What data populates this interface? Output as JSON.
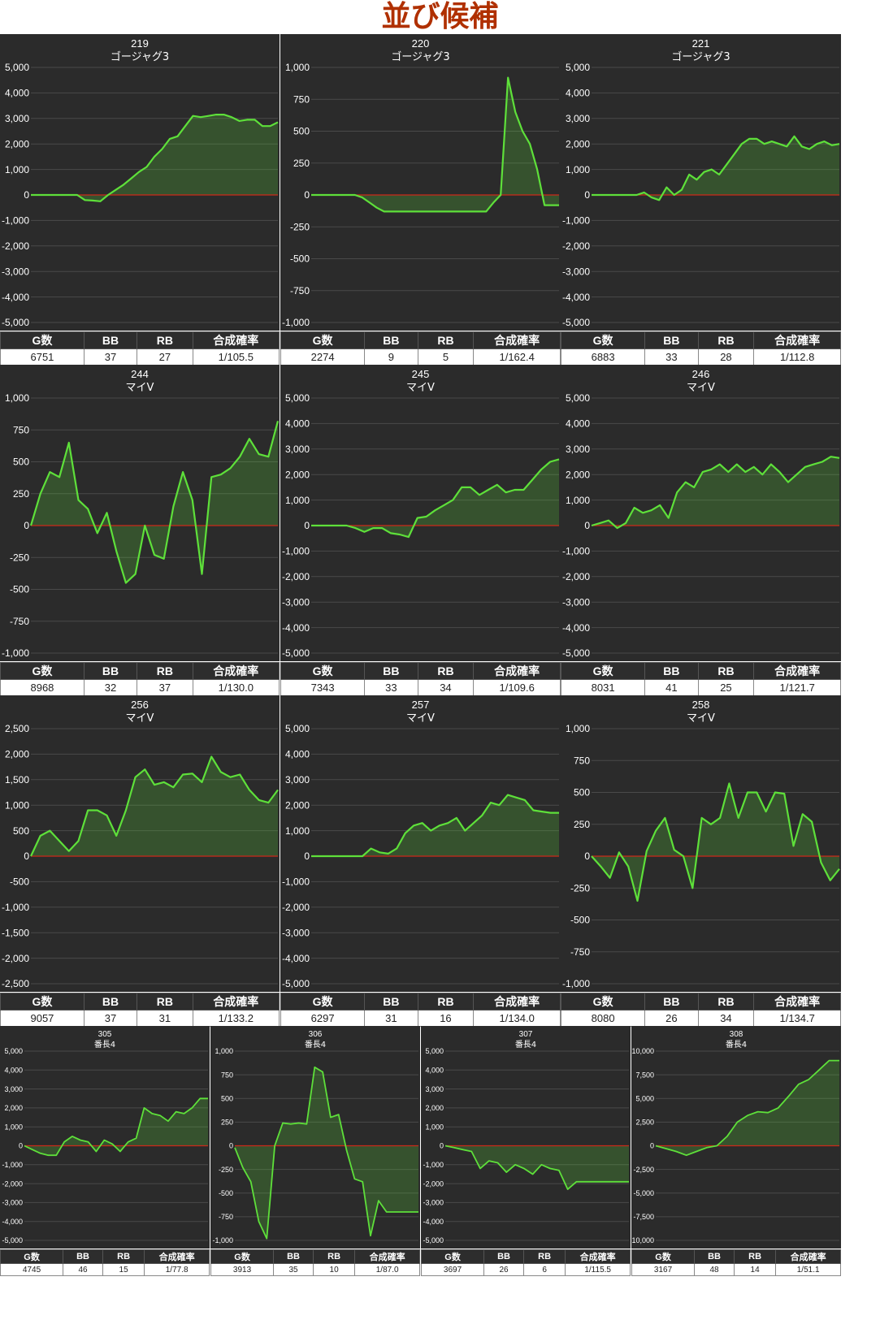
{
  "page": {
    "title": "並び候補"
  },
  "colors": {
    "background": "#2b2b2b",
    "grid": "#4a4a4a",
    "line": "#5ee03a",
    "fill": "rgba(94,224,58,0.22)",
    "zero_line": "#cc2a1a",
    "axis_text": "#ffffff",
    "title_text": "#ffffff"
  },
  "stats_headers": [
    "G数",
    "BB",
    "RB",
    "合成確率"
  ],
  "chart_data": [
    {
      "type": "area",
      "machine_no": "219",
      "model": "ゴージャグ3",
      "ylim": [
        -5000,
        5000
      ],
      "yticks": [
        "5,000",
        "4,000",
        "3,000",
        "2,000",
        "1,000",
        "0",
        "-1,000",
        "-2,000",
        "-3,000",
        "-4,000",
        "-5,000"
      ],
      "values": [
        0,
        0,
        0,
        0,
        0,
        0,
        0,
        -200,
        -220,
        -250,
        0,
        200,
        400,
        650,
        900,
        1100,
        1500,
        1800,
        2200,
        2300,
        2700,
        3100,
        3050,
        3100,
        3150,
        3150,
        3050,
        2900,
        2950,
        2950,
        2700,
        2700,
        2850
      ],
      "stats": {
        "games": "6751",
        "bb": "37",
        "rb": "27",
        "rate": "1/105.5"
      }
    },
    {
      "type": "area",
      "machine_no": "220",
      "model": "ゴージャグ3",
      "ylim": [
        -1000,
        1000
      ],
      "yticks": [
        "1,000",
        "750",
        "500",
        "250",
        "0",
        "-250",
        "-500",
        "-750",
        "-1,000"
      ],
      "values": [
        0,
        0,
        0,
        0,
        0,
        0,
        0,
        -20,
        -60,
        -100,
        -130,
        -130,
        -130,
        -130,
        -130,
        -130,
        -130,
        -130,
        -130,
        -130,
        -130,
        -130,
        -130,
        -130,
        -130,
        -60,
        0,
        920,
        650,
        500,
        400,
        200,
        -80,
        -80,
        -80
      ],
      "stats": {
        "games": "2274",
        "bb": "9",
        "rb": "5",
        "rate": "1/162.4"
      }
    },
    {
      "type": "area",
      "machine_no": "221",
      "model": "ゴージャグ3",
      "ylim": [
        -5000,
        5000
      ],
      "yticks": [
        "5,000",
        "4,000",
        "3,000",
        "2,000",
        "1,000",
        "0",
        "-1,000",
        "-2,000",
        "-3,000",
        "-4,000",
        "-5,000"
      ],
      "values": [
        0,
        0,
        0,
        0,
        0,
        0,
        0,
        100,
        -100,
        -200,
        300,
        0,
        200,
        800,
        600,
        900,
        1000,
        800,
        1200,
        1600,
        2000,
        2200,
        2200,
        2000,
        2100,
        2000,
        1900,
        2300,
        1900,
        1800,
        2000,
        2100,
        1950,
        2000
      ],
      "stats": {
        "games": "6883",
        "bb": "33",
        "rb": "28",
        "rate": "1/112.8"
      }
    },
    {
      "type": "area",
      "machine_no": "244",
      "model": "マイV",
      "ylim": [
        -1000,
        1000
      ],
      "yticks": [
        "1,000",
        "750",
        "500",
        "250",
        "0",
        "-250",
        "-500",
        "-750",
        "-1,000"
      ],
      "values": [
        0,
        250,
        420,
        380,
        650,
        200,
        130,
        -60,
        100,
        -200,
        -450,
        -380,
        0,
        -230,
        -260,
        150,
        420,
        200,
        -380,
        380,
        400,
        450,
        540,
        680,
        560,
        540,
        820
      ],
      "stats": {
        "games": "8968",
        "bb": "32",
        "rb": "37",
        "rate": "1/130.0"
      }
    },
    {
      "type": "area",
      "machine_no": "245",
      "model": "マイV",
      "ylim": [
        -5000,
        5000
      ],
      "yticks": [
        "5,000",
        "4,000",
        "3,000",
        "2,000",
        "1,000",
        "0",
        "-1,000",
        "-2,000",
        "-3,000",
        "-4,000",
        "-5,000"
      ],
      "values": [
        0,
        0,
        0,
        0,
        0,
        -100,
        -250,
        -100,
        -100,
        -300,
        -350,
        -450,
        300,
        350,
        600,
        800,
        1000,
        1500,
        1500,
        1200,
        1400,
        1600,
        1300,
        1400,
        1400,
        1800,
        2200,
        2500,
        2600
      ],
      "stats": {
        "games": "7343",
        "bb": "33",
        "rb": "34",
        "rate": "1/109.6"
      }
    },
    {
      "type": "area",
      "machine_no": "246",
      "model": "マイV",
      "ylim": [
        -5000,
        5000
      ],
      "yticks": [
        "5,000",
        "4,000",
        "3,000",
        "2,000",
        "1,000",
        "0",
        "-1,000",
        "-2,000",
        "-3,000",
        "-4,000",
        "-5,000"
      ],
      "values": [
        0,
        100,
        200,
        -100,
        100,
        700,
        500,
        600,
        800,
        300,
        1300,
        1700,
        1500,
        2100,
        2200,
        2400,
        2100,
        2400,
        2100,
        2300,
        2000,
        2400,
        2100,
        1700,
        2000,
        2300,
        2400,
        2500,
        2700,
        2650
      ],
      "stats": {
        "games": "8031",
        "bb": "41",
        "rb": "25",
        "rate": "1/121.7"
      }
    },
    {
      "type": "area",
      "machine_no": "256",
      "model": "マイV",
      "ylim": [
        -2500,
        2500
      ],
      "yticks": [
        "2,500",
        "2,000",
        "1,500",
        "1,000",
        "500",
        "0",
        "-500",
        "-1,000",
        "-1,500",
        "-2,000",
        "-2,500"
      ],
      "values": [
        0,
        400,
        500,
        300,
        100,
        300,
        900,
        900,
        800,
        400,
        900,
        1550,
        1700,
        1400,
        1450,
        1350,
        1600,
        1620,
        1450,
        1950,
        1650,
        1550,
        1600,
        1300,
        1100,
        1050,
        1300
      ],
      "stats": {
        "games": "9057",
        "bb": "37",
        "rb": "31",
        "rate": "1/133.2"
      }
    },
    {
      "type": "area",
      "machine_no": "257",
      "model": "マイV",
      "ylim": [
        -5000,
        5000
      ],
      "yticks": [
        "5,000",
        "4,000",
        "3,000",
        "2,000",
        "1,000",
        "0",
        "-1,000",
        "-2,000",
        "-3,000",
        "-4,000",
        "-5,000"
      ],
      "values": [
        0,
        0,
        0,
        0,
        0,
        0,
        0,
        300,
        150,
        100,
        300,
        900,
        1200,
        1300,
        1000,
        1200,
        1300,
        1500,
        1000,
        1300,
        1600,
        2100,
        2000,
        2400,
        2300,
        2200,
        1800,
        1750,
        1700,
        1700
      ],
      "stats": {
        "games": "6297",
        "bb": "31",
        "rb": "16",
        "rate": "1/134.0"
      }
    },
    {
      "type": "area",
      "machine_no": "258",
      "model": "マイV",
      "ylim": [
        -1000,
        1000
      ],
      "yticks": [
        "1,000",
        "750",
        "500",
        "250",
        "0",
        "-250",
        "-500",
        "-750",
        "-1,000"
      ],
      "values": [
        0,
        -80,
        -170,
        30,
        -80,
        -350,
        40,
        200,
        300,
        50,
        0,
        -250,
        300,
        250,
        300,
        570,
        300,
        500,
        500,
        350,
        500,
        490,
        80,
        330,
        270,
        -50,
        -190,
        -100
      ],
      "stats": {
        "games": "8080",
        "bb": "26",
        "rb": "34",
        "rate": "1/134.7"
      }
    },
    {
      "type": "area",
      "machine_no": "305",
      "model": "番長4",
      "ylim": [
        -5000,
        5000
      ],
      "yticks": [
        "5,000",
        "4,000",
        "3,000",
        "2,000",
        "1,000",
        "0",
        "-1,000",
        "-2,000",
        "-3,000",
        "-4,000",
        "-5,000"
      ],
      "values": [
        0,
        -200,
        -400,
        -500,
        -500,
        200,
        500,
        300,
        200,
        -300,
        300,
        100,
        -300,
        200,
        400,
        2000,
        1700,
        1600,
        1300,
        1800,
        1700,
        2000,
        2500,
        2500
      ],
      "stats": {
        "games": "4745",
        "bb": "46",
        "rb": "15",
        "rate": "1/77.8"
      }
    },
    {
      "type": "area",
      "machine_no": "306",
      "model": "番長4",
      "ylim": [
        -1000,
        1000
      ],
      "yticks": [
        "1,000",
        "750",
        "500",
        "250",
        "0",
        "-250",
        "-500",
        "-750",
        "-1,000"
      ],
      "values": [
        -20,
        -230,
        -380,
        -800,
        -980,
        0,
        240,
        230,
        240,
        230,
        830,
        780,
        300,
        330,
        -50,
        -350,
        -380,
        -950,
        -580,
        -700,
        -700,
        -700,
        -700,
        -700
      ],
      "stats": {
        "games": "3913",
        "bb": "35",
        "rb": "10",
        "rate": "1/87.0"
      }
    },
    {
      "type": "area",
      "machine_no": "307",
      "model": "番長4",
      "ylim": [
        -5000,
        5000
      ],
      "yticks": [
        "5,000",
        "4,000",
        "3,000",
        "2,000",
        "1,000",
        "0",
        "-1,000",
        "-2,000",
        "-3,000",
        "-4,000",
        "-5,000"
      ],
      "values": [
        0,
        -100,
        -200,
        -300,
        -1200,
        -800,
        -900,
        -1400,
        -1000,
        -1200,
        -1500,
        -1000,
        -1200,
        -1300,
        -2300,
        -1900,
        -1900,
        -1900,
        -1900,
        -1900,
        -1900,
        -1900
      ],
      "stats": {
        "games": "3697",
        "bb": "26",
        "rb": "6",
        "rate": "1/115.5"
      }
    },
    {
      "type": "area",
      "machine_no": "308",
      "model": "番長4",
      "ylim": [
        -10000,
        10000
      ],
      "yticks": [
        "10,000",
        "7,500",
        "5,000",
        "2,500",
        "0",
        "-2,500",
        "-5,000",
        "-7,500",
        "-10,000"
      ],
      "values": [
        0,
        -300,
        -600,
        -1000,
        -600,
        -200,
        0,
        1000,
        2500,
        3200,
        3600,
        3500,
        4000,
        5200,
        6500,
        7000,
        8000,
        9000,
        9000
      ],
      "stats": {
        "games": "3167",
        "bb": "48",
        "rb": "14",
        "rate": "1/51.1"
      }
    }
  ]
}
